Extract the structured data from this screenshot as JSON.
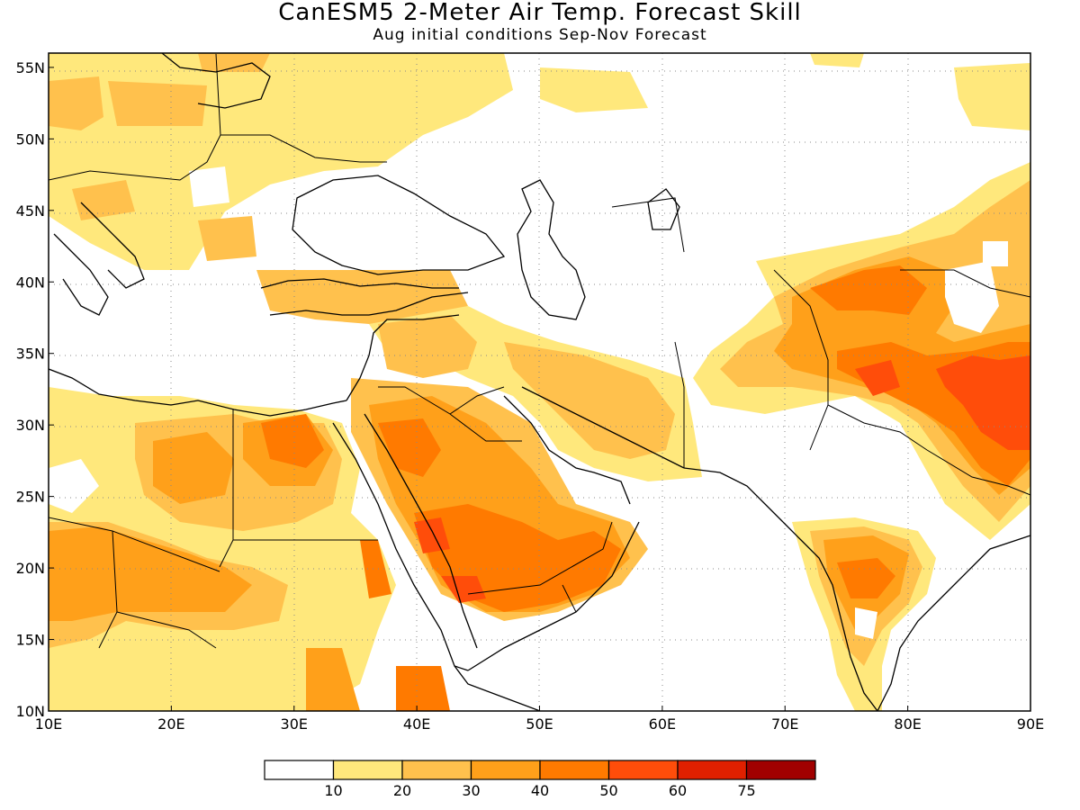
{
  "title": "CanESM5 2-Meter Air Temp. Forecast Skill",
  "subtitle": "Aug initial conditions  Sep-Nov Forecast",
  "map": {
    "lon_range": [
      10,
      90
    ],
    "lat_range": [
      10,
      56
    ],
    "lat_ticks": [
      {
        "value": 10,
        "label": "10N"
      },
      {
        "value": 15,
        "label": "15N"
      },
      {
        "value": 20,
        "label": "20N"
      },
      {
        "value": 25,
        "label": "25N"
      },
      {
        "value": 30,
        "label": "30N"
      },
      {
        "value": 35,
        "label": "35N"
      },
      {
        "value": 40,
        "label": "40N"
      },
      {
        "value": 45,
        "label": "45N"
      },
      {
        "value": 50,
        "label": "50N"
      },
      {
        "value": 55,
        "label": "55N"
      }
    ],
    "lon_ticks": [
      {
        "value": 10,
        "label": "10E"
      },
      {
        "value": 20,
        "label": "20E"
      },
      {
        "value": 30,
        "label": "30E"
      },
      {
        "value": 40,
        "label": "40E"
      },
      {
        "value": 50,
        "label": "50E"
      },
      {
        "value": 60,
        "label": "60E"
      },
      {
        "value": 70,
        "label": "70E"
      },
      {
        "value": 80,
        "label": "80E"
      },
      {
        "value": 90,
        "label": "90E"
      }
    ],
    "grid": "dotted"
  },
  "colorbar": {
    "colors": [
      "#ffffff",
      "#ffe87c",
      "#ffc14d",
      "#ffa01a",
      "#ff7a00",
      "#ff4d0a",
      "#e02000",
      "#a10000"
    ],
    "labels": [
      "10",
      "20",
      "30",
      "40",
      "50",
      "60",
      "75"
    ]
  }
}
